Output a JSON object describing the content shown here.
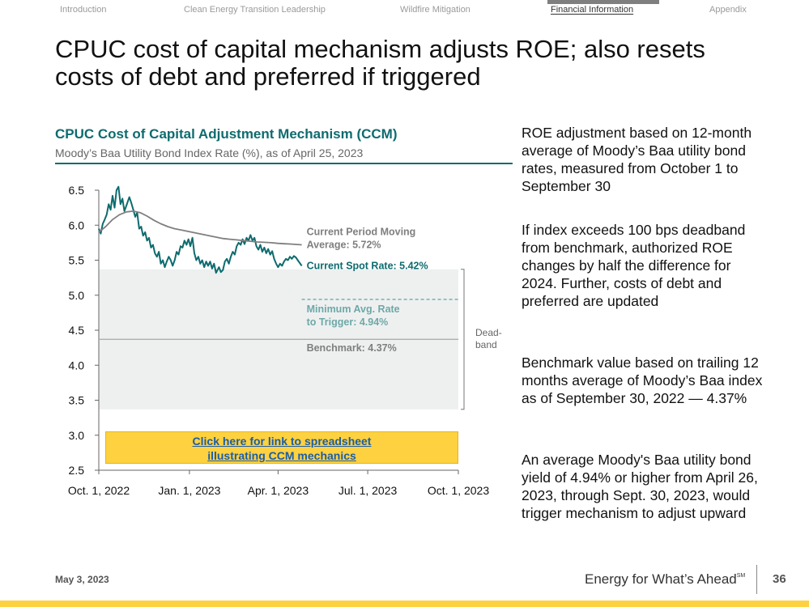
{
  "nav": {
    "items": [
      "Introduction",
      "Clean Energy Transition Leadership",
      "Wildfire Mitigation",
      "Financial Information",
      "Appendix"
    ],
    "active_index": 3
  },
  "title": "CPUC cost of capital mechanism adjusts ROE; also resets costs of debt and preferred if triggered",
  "chart_data": {
    "type": "line",
    "title": "CPUC Cost of Capital Adjustment Mechanism (CCM)",
    "subtitle": "Moody’s Baa Utility Bond Index Rate (%), as of April 25, 2023",
    "ylim": [
      2.5,
      6.5
    ],
    "yticks": [
      "2.5",
      "3.0",
      "3.5",
      "4.0",
      "4.5",
      "5.0",
      "5.5",
      "6.0",
      "6.5"
    ],
    "xlim": [
      "2022-10-01",
      "2023-10-01"
    ],
    "xticks": [
      {
        "date": "2022-10-01",
        "label": "Oct. 1, 2022"
      },
      {
        "date": "2023-01-01",
        "label": "Jan. 1, 2023"
      },
      {
        "date": "2023-04-01",
        "label": "Apr. 1, 2023"
      },
      {
        "date": "2023-07-01",
        "label": "Jul. 1, 2023"
      },
      {
        "date": "2023-10-01",
        "label": "Oct. 1, 2023"
      }
    ],
    "deadband": {
      "low": 3.37,
      "high": 5.37,
      "label": "Dead-\nband"
    },
    "reference_lines": [
      {
        "name": "benchmark",
        "value": 4.37,
        "label": "Benchmark: 4.37%",
        "color": "#a6a6a6"
      },
      {
        "name": "minimum-trigger",
        "value": 4.94,
        "label": "Minimum Avg. Rate\nto Trigger: 4.94%",
        "color": "#6fa8a8",
        "dashed": true
      }
    ],
    "annotations": [
      {
        "name": "moving-average-label",
        "text": "Current Period Moving\nAverage: 5.72%",
        "color": "#7f7f7f"
      },
      {
        "name": "spot-rate-label",
        "text": "Current Spot Rate: 5.42%",
        "color": "#0e6b6e"
      }
    ],
    "series": [
      {
        "key": "spot",
        "color": "#0e6b6e",
        "points": [
          [
            "2022-10-01",
            5.95
          ],
          [
            "2022-10-03",
            5.88
          ],
          [
            "2022-10-05",
            6.02
          ],
          [
            "2022-10-07",
            6.08
          ],
          [
            "2022-10-09",
            6.15
          ],
          [
            "2022-10-11",
            6.3
          ],
          [
            "2022-10-13",
            6.22
          ],
          [
            "2022-10-15",
            6.42
          ],
          [
            "2022-10-17",
            6.25
          ],
          [
            "2022-10-19",
            6.5
          ],
          [
            "2022-10-21",
            6.55
          ],
          [
            "2022-10-23",
            6.3
          ],
          [
            "2022-10-25",
            6.38
          ],
          [
            "2022-10-27",
            6.2
          ],
          [
            "2022-10-29",
            6.28
          ],
          [
            "2022-11-01",
            6.4
          ],
          [
            "2022-11-03",
            6.32
          ],
          [
            "2022-11-05",
            6.22
          ],
          [
            "2022-11-07",
            6.12
          ],
          [
            "2022-11-09",
            6.18
          ],
          [
            "2022-11-11",
            5.95
          ],
          [
            "2022-11-13",
            5.98
          ],
          [
            "2022-11-15",
            5.85
          ],
          [
            "2022-11-17",
            5.9
          ],
          [
            "2022-11-19",
            5.78
          ],
          [
            "2022-11-21",
            5.82
          ],
          [
            "2022-11-23",
            5.68
          ],
          [
            "2022-11-25",
            5.72
          ],
          [
            "2022-11-27",
            5.6
          ],
          [
            "2022-11-29",
            5.55
          ],
          [
            "2022-12-01",
            5.62
          ],
          [
            "2022-12-03",
            5.45
          ],
          [
            "2022-12-05",
            5.5
          ],
          [
            "2022-12-07",
            5.4
          ],
          [
            "2022-12-09",
            5.48
          ],
          [
            "2022-12-11",
            5.55
          ],
          [
            "2022-12-13",
            5.5
          ],
          [
            "2022-12-15",
            5.42
          ],
          [
            "2022-12-17",
            5.5
          ],
          [
            "2022-12-19",
            5.62
          ],
          [
            "2022-12-21",
            5.58
          ],
          [
            "2022-12-23",
            5.7
          ],
          [
            "2022-12-25",
            5.68
          ],
          [
            "2022-12-27",
            5.78
          ],
          [
            "2022-12-29",
            5.72
          ],
          [
            "2022-12-31",
            5.8
          ],
          [
            "2023-01-02",
            5.7
          ],
          [
            "2023-01-04",
            5.82
          ],
          [
            "2023-01-06",
            5.6
          ],
          [
            "2023-01-08",
            5.5
          ],
          [
            "2023-01-10",
            5.55
          ],
          [
            "2023-01-12",
            5.45
          ],
          [
            "2023-01-14",
            5.5
          ],
          [
            "2023-01-16",
            5.4
          ],
          [
            "2023-01-18",
            5.48
          ],
          [
            "2023-01-20",
            5.42
          ],
          [
            "2023-01-22",
            5.48
          ],
          [
            "2023-01-24",
            5.38
          ],
          [
            "2023-01-26",
            5.45
          ],
          [
            "2023-01-28",
            5.32
          ],
          [
            "2023-01-31",
            5.4
          ],
          [
            "2023-02-02",
            5.33
          ],
          [
            "2023-02-04",
            5.36
          ],
          [
            "2023-02-06",
            5.48
          ],
          [
            "2023-02-08",
            5.52
          ],
          [
            "2023-02-10",
            5.45
          ],
          [
            "2023-02-12",
            5.55
          ],
          [
            "2023-02-14",
            5.62
          ],
          [
            "2023-02-16",
            5.58
          ],
          [
            "2023-02-18",
            5.7
          ],
          [
            "2023-02-20",
            5.75
          ],
          [
            "2023-02-22",
            5.72
          ],
          [
            "2023-02-24",
            5.8
          ],
          [
            "2023-02-26",
            5.73
          ],
          [
            "2023-02-28",
            5.82
          ],
          [
            "2023-03-02",
            5.78
          ],
          [
            "2023-03-04",
            5.86
          ],
          [
            "2023-03-06",
            5.78
          ],
          [
            "2023-03-08",
            5.82
          ],
          [
            "2023-03-10",
            5.7
          ],
          [
            "2023-03-12",
            5.65
          ],
          [
            "2023-03-14",
            5.72
          ],
          [
            "2023-03-16",
            5.62
          ],
          [
            "2023-03-18",
            5.68
          ],
          [
            "2023-03-20",
            5.6
          ],
          [
            "2023-03-22",
            5.66
          ],
          [
            "2023-03-24",
            5.58
          ],
          [
            "2023-03-26",
            5.63
          ],
          [
            "2023-03-28",
            5.52
          ],
          [
            "2023-03-30",
            5.45
          ],
          [
            "2023-04-01",
            5.4
          ],
          [
            "2023-04-03",
            5.45
          ],
          [
            "2023-04-05",
            5.42
          ],
          [
            "2023-04-07",
            5.48
          ],
          [
            "2023-04-09",
            5.52
          ],
          [
            "2023-04-11",
            5.5
          ],
          [
            "2023-04-13",
            5.55
          ],
          [
            "2023-04-15",
            5.52
          ],
          [
            "2023-04-17",
            5.56
          ],
          [
            "2023-04-19",
            5.54
          ],
          [
            "2023-04-21",
            5.5
          ],
          [
            "2023-04-23",
            5.46
          ],
          [
            "2023-04-25",
            5.42
          ]
        ]
      },
      {
        "key": "moving-average",
        "color": "#7f7f7f",
        "points": [
          [
            "2022-10-01",
            5.9
          ],
          [
            "2022-10-08",
            5.98
          ],
          [
            "2022-10-15",
            6.08
          ],
          [
            "2022-10-22",
            6.15
          ],
          [
            "2022-10-29",
            6.19
          ],
          [
            "2022-11-05",
            6.2
          ],
          [
            "2022-11-12",
            6.18
          ],
          [
            "2022-11-19",
            6.13
          ],
          [
            "2022-11-26",
            6.07
          ],
          [
            "2022-12-03",
            6.02
          ],
          [
            "2022-12-10",
            5.98
          ],
          [
            "2022-12-17",
            5.95
          ],
          [
            "2022-12-24",
            5.93
          ],
          [
            "2022-12-31",
            5.91
          ],
          [
            "2023-01-07",
            5.89
          ],
          [
            "2023-01-14",
            5.87
          ],
          [
            "2023-01-21",
            5.85
          ],
          [
            "2023-01-28",
            5.83
          ],
          [
            "2023-02-04",
            5.81
          ],
          [
            "2023-02-11",
            5.8
          ],
          [
            "2023-02-18",
            5.79
          ],
          [
            "2023-02-25",
            5.78
          ],
          [
            "2023-03-04",
            5.77
          ],
          [
            "2023-03-11",
            5.76
          ],
          [
            "2023-03-18",
            5.755
          ],
          [
            "2023-03-25",
            5.75
          ],
          [
            "2023-04-01",
            5.74
          ],
          [
            "2023-04-08",
            5.735
          ],
          [
            "2023-04-15",
            5.73
          ],
          [
            "2023-04-25",
            5.72
          ]
        ]
      }
    ]
  },
  "link": {
    "line1": "Click here for link to spreadsheet",
    "line2": "illustrating CCM mechanics"
  },
  "side_text": [
    "ROE adjustment based on 12-month average of Moody’s Baa utility bond rates, measured from October 1 to September 30",
    "If index exceeds 100 bps deadband from benchmark, authorized ROE changes by half the difference for 2024. Further, costs of debt and preferred are updated",
    "Benchmark value based on trailing 12 months average of Moody’s Baa index as of September 30, 2022 — 4.37%",
    "An average Moody's Baa utility bond yield of 4.94% or higher from April 26, 2023, through Sept. 30, 2023, would trigger mechanism to adjust upward"
  ],
  "footer": {
    "date": "May 3, 2023",
    "brand": "Energy for What’s Ahead",
    "brand_mark": "SM",
    "page": "36"
  }
}
